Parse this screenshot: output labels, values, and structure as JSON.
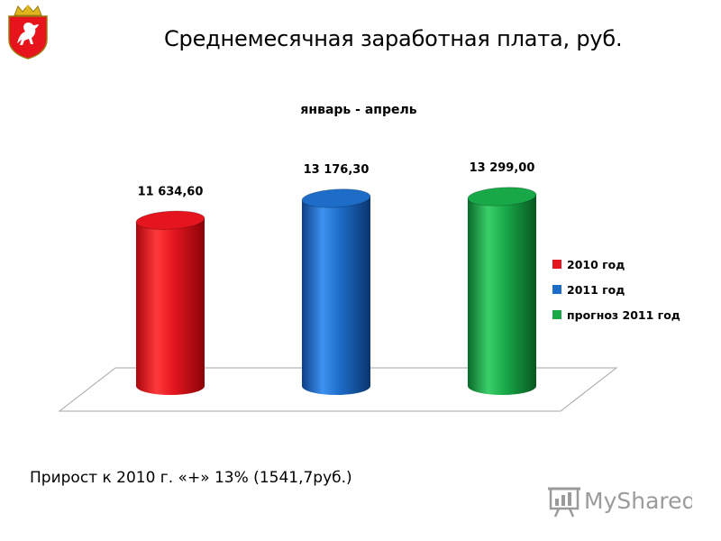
{
  "header": {
    "emblem": "coat-of-arms-emblem",
    "title": "Среднемесячная заработная плата, руб."
  },
  "chart_data": {
    "type": "bar",
    "style": "3d-cylinder",
    "title": "январь - апрель",
    "categories": [
      "2010 год",
      "2011 год",
      "прогноз  2011 год"
    ],
    "values": [
      11634.6,
      13176.3,
      13299.0
    ],
    "value_labels": [
      "11 634,60",
      "13 176,30",
      "13 299,00"
    ],
    "colors": [
      "#e4151f",
      "#1d6dc8",
      "#18a848"
    ],
    "legend": {
      "position": "right",
      "entries": [
        "2010 год",
        "2011 год",
        "прогноз  2011 год"
      ]
    },
    "ylim": [
      0,
      13299.0
    ],
    "grid": false
  },
  "footer": {
    "growth_text": "Прирост к 2010 г. «+» 13% (1541,7руб.)"
  },
  "watermark": {
    "text": "MyShared",
    "icon": "presentation-board-icon"
  }
}
